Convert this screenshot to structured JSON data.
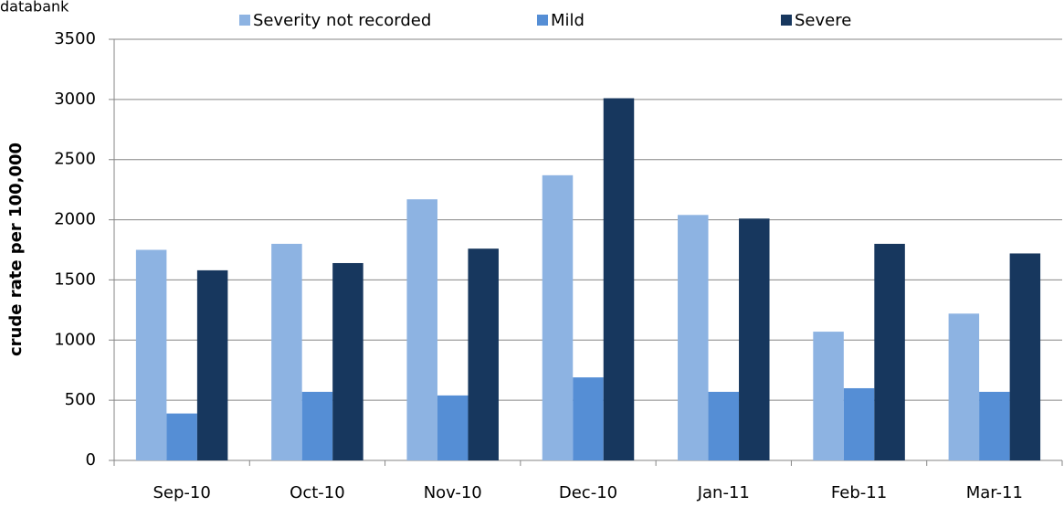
{
  "chart_data": {
    "type": "bar",
    "annotation": "databank",
    "y_label": "crude rate per 100,000",
    "categories": [
      "Sep-10",
      "Oct-10",
      "Nov-10",
      "Dec-10",
      "Jan-11",
      "Feb-11",
      "Mar-11"
    ],
    "series": [
      {
        "name": "Severity not recorded",
        "color": "#8db3e2",
        "values": [
          1750,
          1800,
          2170,
          2370,
          2040,
          1070,
          1220
        ]
      },
      {
        "name": "Mild",
        "color": "#558ed5",
        "values": [
          390,
          570,
          540,
          690,
          570,
          600,
          570
        ]
      },
      {
        "name": "Severe",
        "color": "#17375e",
        "values": [
          1580,
          1640,
          1760,
          3010,
          2010,
          1800,
          1720
        ]
      }
    ],
    "ylim": [
      0,
      3500
    ],
    "yticks": [
      0,
      500,
      1000,
      1500,
      2000,
      2500,
      3000,
      3500
    ],
    "grid": true,
    "legend": "top"
  }
}
